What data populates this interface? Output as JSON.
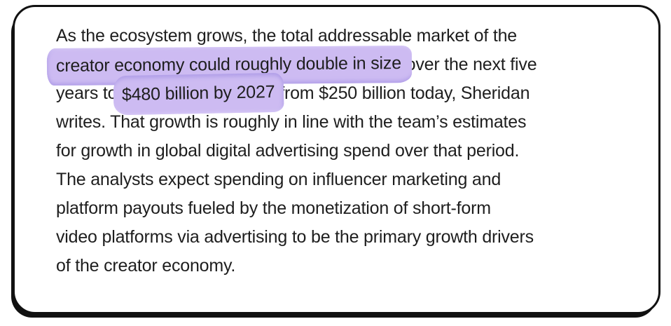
{
  "page": {
    "background": "#ffffff"
  },
  "card": {
    "background": "#ffffff",
    "border_color": "#111111",
    "text_color": "#1e1e1e",
    "highlight_fill": "#cdbbf2",
    "highlight_edge_dark": "#b2a0e8",
    "highlight_edge_light": "#d9cdf7",
    "paragraph_lines": [
      {
        "segments": [
          {
            "t": "As the ecosystem grows, the total addressable market of the"
          }
        ]
      },
      {
        "segments": [
          {
            "t": "creator economy could roughly double in size",
            "hl": "h1"
          },
          {
            "t": " over the next five"
          }
        ]
      },
      {
        "segments": [
          {
            "t": "years to "
          },
          {
            "t": "$480 billion by 2027",
            "hl": "h2"
          },
          {
            "t": " from $250 billion today, Sheridan"
          }
        ]
      },
      {
        "segments": [
          {
            "t": "writes. That growth is roughly in line with the team’s estimates"
          }
        ]
      },
      {
        "segments": [
          {
            "t": "for growth in global digital advertising spend over that period."
          }
        ]
      },
      {
        "segments": [
          {
            "t": "The analysts expect spending on influencer marketing and"
          }
        ]
      },
      {
        "segments": [
          {
            "t": "platform payouts fueled by the monetization of short-form"
          }
        ]
      },
      {
        "segments": [
          {
            "t": "video platforms via advertising to be the primary growth drivers"
          }
        ]
      },
      {
        "segments": [
          {
            "t": "of the creator economy."
          }
        ]
      }
    ],
    "highlight_names": {
      "h1": "highlight-creator-economy-double",
      "h2": "highlight-480-billion-2027"
    }
  }
}
